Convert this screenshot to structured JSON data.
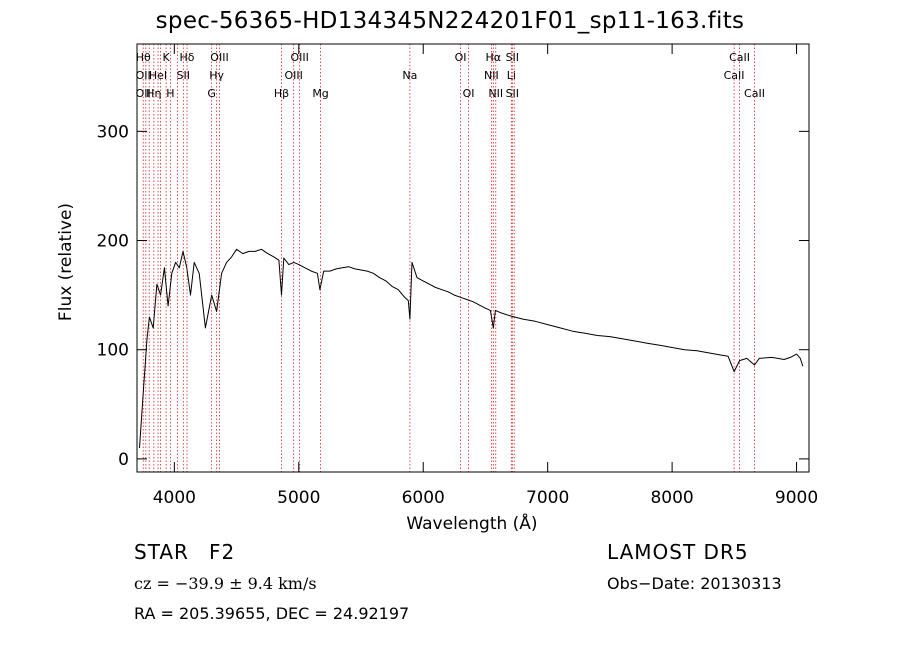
{
  "chart_data": {
    "type": "line",
    "title": "spec-56365-HD134345N224201F01_sp11-163.fits",
    "xlabel": "Wavelength (Å)",
    "ylabel": "Flux (relative)",
    "xlim": [
      3700,
      9100
    ],
    "ylim": [
      -12,
      380
    ],
    "xticks": [
      4000,
      5000,
      6000,
      7000,
      8000,
      9000
    ],
    "yticks": [
      0,
      100,
      200,
      300
    ],
    "grid": false,
    "line_color": "#000000",
    "marker_color": "#d62020",
    "series": [
      {
        "x": [
          3720,
          3750,
          3780,
          3800,
          3830,
          3860,
          3890,
          3920,
          3950,
          3980,
          4010,
          4040,
          4070,
          4100,
          4130,
          4160,
          4200,
          4250,
          4300,
          4340,
          4380,
          4420,
          4460,
          4500,
          4550,
          4600,
          4650,
          4700,
          4750,
          4800,
          4840,
          4861,
          4880,
          4920,
          4960,
          5000,
          5050,
          5100,
          5150,
          5170,
          5200,
          5250,
          5300,
          5350,
          5400,
          5450,
          5500,
          5550,
          5600,
          5650,
          5700,
          5750,
          5800,
          5850,
          5880,
          5893,
          5910,
          5950,
          6000,
          6050,
          6100,
          6150,
          6200,
          6250,
          6300,
          6350,
          6400,
          6450,
          6500,
          6540,
          6563,
          6580,
          6620,
          6700,
          6800,
          6900,
          7000,
          7100,
          7200,
          7300,
          7400,
          7500,
          7600,
          7700,
          7800,
          7900,
          8000,
          8100,
          8200,
          8300,
          8400,
          8450,
          8498,
          8542,
          8600,
          8662,
          8700,
          8800,
          8850,
          8900,
          8950,
          9000,
          9030,
          9050
        ],
        "y": [
          10,
          60,
          110,
          130,
          120,
          160,
          150,
          175,
          140,
          170,
          180,
          175,
          190,
          175,
          150,
          180,
          170,
          120,
          150,
          135,
          170,
          180,
          185,
          192,
          188,
          190,
          190,
          192,
          188,
          185,
          182,
          150,
          184,
          178,
          180,
          178,
          175,
          172,
          170,
          155,
          172,
          172,
          174,
          175,
          176,
          174,
          173,
          172,
          170,
          166,
          163,
          158,
          155,
          148,
          145,
          128,
          180,
          166,
          163,
          160,
          157,
          155,
          153,
          150,
          148,
          146,
          144,
          141,
          138,
          136,
          120,
          136,
          134,
          131,
          128,
          126,
          123,
          120,
          117,
          115,
          113,
          112,
          110,
          108,
          106,
          104,
          102,
          100,
          99,
          97,
          95,
          94,
          80,
          90,
          92,
          86,
          92,
          93,
          92,
          91,
          93,
          96,
          92,
          85
        ]
      }
    ],
    "lines": [
      {
        "x": 3750,
        "labels": [
          "Hθ",
          "OII",
          "OII"
        ]
      },
      {
        "x": 3771
      },
      {
        "x": 3798
      },
      {
        "x": 3835,
        "labels": [
          "",
          "",
          "Hη"
        ]
      },
      {
        "x": 3869,
        "labels": [
          "",
          "HeI",
          ""
        ]
      },
      {
        "x": 3889
      },
      {
        "x": 3934,
        "labels": [
          "K",
          "",
          ""
        ]
      },
      {
        "x": 3968,
        "labels": [
          "",
          "",
          "H"
        ]
      },
      {
        "x": 4026
      },
      {
        "x": 4072,
        "labels": [
          "",
          "SII",
          ""
        ]
      },
      {
        "x": 4102,
        "labels": [
          "Hδ",
          "",
          ""
        ]
      },
      {
        "x": 4300,
        "labels": [
          "",
          "",
          "G"
        ]
      },
      {
        "x": 4340,
        "labels": [
          "",
          "Hγ",
          ""
        ]
      },
      {
        "x": 4363,
        "labels": [
          "OIII",
          "",
          ""
        ]
      },
      {
        "x": 4861,
        "labels": [
          "",
          "",
          "Hβ"
        ]
      },
      {
        "x": 4959,
        "labels": [
          "",
          "OIII",
          ""
        ]
      },
      {
        "x": 5007,
        "labels": [
          "OIII",
          "",
          ""
        ]
      },
      {
        "x": 5175,
        "labels": [
          "",
          "",
          "Mg"
        ]
      },
      {
        "x": 5893,
        "labels": [
          "",
          "Na",
          ""
        ]
      },
      {
        "x": 6300,
        "labels": [
          "OI",
          "",
          ""
        ]
      },
      {
        "x": 6364,
        "labels": [
          "",
          "",
          "OI"
        ]
      },
      {
        "x": 6548,
        "labels": [
          "",
          "NII",
          ""
        ]
      },
      {
        "x": 6563,
        "labels": [
          "Hα",
          "",
          ""
        ]
      },
      {
        "x": 6583,
        "labels": [
          "",
          "",
          "NII"
        ]
      },
      {
        "x": 6708,
        "labels": [
          "",
          "Li",
          ""
        ]
      },
      {
        "x": 6716,
        "labels": [
          "SII",
          "",
          "SII"
        ]
      },
      {
        "x": 6731
      },
      {
        "x": 8498,
        "labels": [
          "",
          "CaII",
          ""
        ]
      },
      {
        "x": 8542,
        "labels": [
          "CaII",
          "",
          ""
        ]
      },
      {
        "x": 8662,
        "labels": [
          "",
          "",
          "CaII"
        ]
      }
    ]
  },
  "info": {
    "object_class": "STAR",
    "subclass": "F2",
    "survey": "LAMOST  DR5",
    "redshift": "cz = −39.9 ± 9.4 km/s",
    "obs_date": "Obs−Date: 20130313",
    "coords": "RA = 205.39655, DEC =  24.92197"
  }
}
